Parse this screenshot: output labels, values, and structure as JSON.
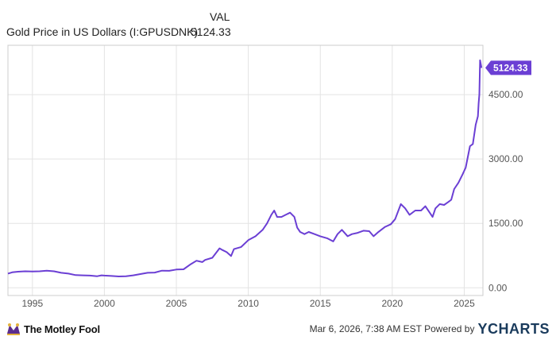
{
  "header": {
    "column_label": "VAL",
    "series_label": "Gold Price in US Dollars (I:GPUSDNK)",
    "series_value": "5124.33"
  },
  "chart_data": {
    "type": "line",
    "x_axis": {
      "ticks": [
        "1995",
        "2000",
        "2005",
        "2010",
        "2015",
        "2020",
        "2025"
      ],
      "range": [
        1993.3,
        2026.3
      ]
    },
    "y_axis": {
      "ticks": [
        "0.00",
        "1500.00",
        "3000.00",
        "4500.00"
      ],
      "range": [
        -180,
        5650
      ],
      "position": "right"
    },
    "grid": true,
    "last_value_label": "5124.33",
    "series": [
      {
        "color": "#6b3fd4",
        "x": [
          1993.3,
          1993.6,
          1994.0,
          1994.5,
          1995.0,
          1995.5,
          1996.0,
          1996.5,
          1997.0,
          1997.5,
          1998.0,
          1998.5,
          1999.0,
          1999.5,
          1999.8,
          2000.0,
          2000.5,
          2001.0,
          2001.5,
          2002.0,
          2002.5,
          2003.0,
          2003.5,
          2004.0,
          2004.5,
          2005.0,
          2005.5,
          2006.0,
          2006.4,
          2006.8,
          2007.0,
          2007.5,
          2008.0,
          2008.2,
          2008.5,
          2008.8,
          2009.0,
          2009.5,
          2010.0,
          2010.5,
          2011.0,
          2011.3,
          2011.6,
          2011.8,
          2012.0,
          2012.3,
          2012.6,
          2012.9,
          2013.2,
          2013.4,
          2013.6,
          2013.9,
          2014.2,
          2014.6,
          2015.0,
          2015.5,
          2015.9,
          2016.2,
          2016.5,
          2016.9,
          2017.2,
          2017.6,
          2018.0,
          2018.4,
          2018.7,
          2019.0,
          2019.5,
          2019.9,
          2020.2,
          2020.6,
          2020.9,
          2021.2,
          2021.6,
          2022.0,
          2022.3,
          2022.6,
          2022.8,
          2023.0,
          2023.3,
          2023.6,
          2023.9,
          2024.1,
          2024.3,
          2024.6,
          2024.9,
          2025.1,
          2025.4,
          2025.6,
          2025.8,
          2025.95,
          2026.0,
          2026.05,
          2026.1,
          2026.2
        ],
        "values": [
          330,
          360,
          375,
          385,
          380,
          385,
          400,
          385,
          350,
          330,
          295,
          290,
          285,
          270,
          290,
          285,
          275,
          265,
          270,
          290,
          320,
          350,
          355,
          400,
          395,
          425,
          430,
          550,
          630,
          600,
          650,
          700,
          920,
          880,
          830,
          740,
          900,
          950,
          1110,
          1200,
          1350,
          1500,
          1700,
          1800,
          1650,
          1650,
          1700,
          1750,
          1650,
          1400,
          1300,
          1250,
          1300,
          1250,
          1200,
          1150,
          1080,
          1250,
          1350,
          1200,
          1250,
          1280,
          1330,
          1320,
          1200,
          1290,
          1420,
          1480,
          1600,
          1950,
          1850,
          1700,
          1800,
          1800,
          1900,
          1750,
          1650,
          1850,
          1950,
          1930,
          2000,
          2050,
          2300,
          2450,
          2650,
          2800,
          3300,
          3350,
          3800,
          4000,
          4300,
          4500,
          5300,
          5124.33
        ]
      }
    ]
  },
  "footer": {
    "brand_left": "The Motley Fool",
    "timestamp": "Mar 6, 2026, 7:38 AM EST Powered by",
    "brand_right_prefix": "Y",
    "brand_right_suffix": "CHARTS"
  },
  "colors": {
    "series": "#6b3fd4",
    "grid": "#e3e3e3",
    "axis_text": "#555555"
  }
}
